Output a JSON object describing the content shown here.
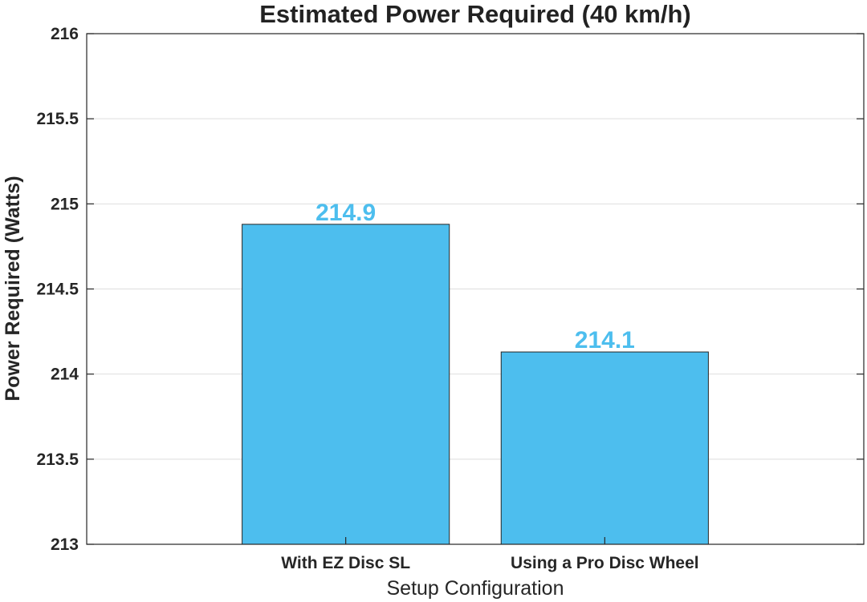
{
  "chart_data": {
    "type": "bar",
    "title": "Estimated Power Required (40 km/h)",
    "xlabel": "Setup Configuration",
    "ylabel": "Power Required (Watts)",
    "categories": [
      "With EZ Disc SL",
      "Using a Pro Disc Wheel"
    ],
    "values": [
      214.88,
      214.13
    ],
    "data_labels": [
      "214.9",
      "214.1"
    ],
    "ylim": [
      213,
      216
    ],
    "yticks": [
      213,
      213.5,
      214,
      214.5,
      215,
      215.5,
      216
    ],
    "ytick_labels": [
      "213",
      "213.5",
      "214",
      "214.5",
      "215",
      "215.5",
      "216"
    ],
    "grid": true,
    "bar_color": "#4DBEEE",
    "label_color": "#4DBEEE"
  }
}
